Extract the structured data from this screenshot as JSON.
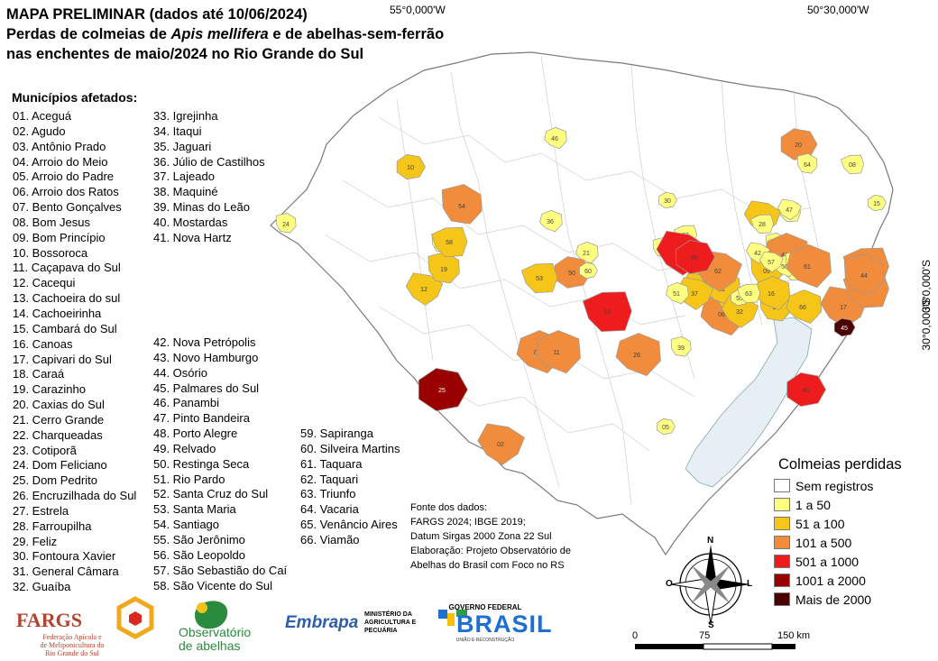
{
  "title": {
    "line1": "MAPA PRELIMINAR (dados até 10/06/2024)",
    "line2_a": "Perdas de colmeias de ",
    "line2_species": "Apis mellifera",
    "line2_b": " e de abelhas-sem-ferrão",
    "line3": "nas enchentes de maio/2024 no Rio Grande do Sul"
  },
  "coords": {
    "top_left": "55°0,000'W",
    "top_right": "50°30,000'W",
    "right_top": "30°0,000'S",
    "right_bottom": "30°0,000'S"
  },
  "municipalities_title": "Municípios afetados:",
  "municipalities": {
    "col1": [
      "01. Aceguá",
      "02. Agudo",
      "03. Antônio Prado",
      "04. Arroio do Meio",
      "05. Arroio do Padre",
      "06. Arroio dos Ratos",
      "07. Bento Gonçalves",
      "08. Bom Jesus",
      "09. Bom Princípio",
      "10. Bossoroca",
      "11. Caçapava do Sul",
      "12. Cacequi",
      "13. Cachoeira do sul",
      "14. Cachoeirinha",
      "15. Cambará do Sul",
      "16. Canoas",
      "17. Capivari do Sul",
      "18. Caraá",
      "19. Carazinho",
      "20. Caxias do Sul",
      "21. Cerro Grande",
      "22. Charqueadas",
      "23. Cotiporã",
      "24. Dom Feliciano",
      "25. Dom Pedrito",
      "26. Encruzilhada do Sul",
      "27. Estrela",
      "28. Farroupilha",
      "29. Feliz",
      "30. Fontoura Xavier",
      "31. General Câmara",
      "32. Guaíba"
    ],
    "col2a": [
      "33. Igrejinha",
      "34. Itaqui",
      "35. Jaguari",
      "36. Júlio de Castilhos",
      "37. Lajeado",
      "38. Maquiné",
      "39. Minas do Leão",
      "40. Mostardas",
      "41. Nova Hartz"
    ],
    "col2b": [
      "42. Nova Petrópolis",
      "43. Novo Hamburgo",
      "44. Osório",
      "45. Palmares do Sul",
      "46. Panambi",
      "47. Pinto Bandeira",
      "48. Porto Alegre",
      "49. Relvado",
      "50. Restinga Seca",
      "51. Rio Pardo",
      "52. Santa Cruz do Sul",
      "53. Santa Maria",
      "54. Santiago",
      "55. São Jerônimo",
      "56. São Leopoldo",
      "57. São Sebastião do Caí",
      "58. São Vicente do Sul"
    ],
    "col3": [
      "59. Sapiranga",
      "60. Silveira Martins",
      "61. Taquara",
      "62. Taquari",
      "63. Triunfo",
      "64. Vacaria",
      "65. Venâncio Aires",
      "66. Viamão"
    ]
  },
  "legend": {
    "title": "Colmeias perdidas",
    "items": [
      {
        "label": "Sem registros",
        "color": "#ffffff"
      },
      {
        "label": "1 a 50",
        "color": "#ffff80"
      },
      {
        "label": "51 a 100",
        "color": "#f5c518"
      },
      {
        "label": "101 a 500",
        "color": "#f08c3c"
      },
      {
        "label": "501 a 1000",
        "color": "#ee1c1c"
      },
      {
        "label": "1001 a 2000",
        "color": "#990000"
      },
      {
        "label": "Mais de 2000",
        "color": "#4a0000"
      }
    ]
  },
  "source": {
    "l1": "Fonte dos dados:",
    "l2": "FARGS 2024; IBGE 2019;",
    "l3": "Datum Sirgas 2000 Zona 22 Sul",
    "l4": "Elaboração: Projeto Observatório de",
    "l5": "Abelhas do Brasil com Foco no RS"
  },
  "compass": {
    "n": "N",
    "s": "S",
    "l": "L",
    "o": "O"
  },
  "scale": {
    "s0": "0",
    "s1": "75",
    "s2": "150 km"
  },
  "colors": {
    "lagoon": "#e6eef6",
    "border": "#bdbdbd"
  },
  "logos": {
    "fargs": "FARGS",
    "fargs_sub1": "Federação Apícola e",
    "fargs_sub2": "de Meliponicultura do",
    "fargs_sub3": "Rio Grande do Sul",
    "obs1": "Observatório",
    "obs2": "de abelhas",
    "embrapa": "Embrapa",
    "min1": "MINISTÉRIO DA",
    "min2": "AGRICULTURA E",
    "min3": "PECUÁRIA",
    "gov_top": "GOVERNO FEDERAL",
    "gov_word": "BRASIL",
    "gov_sub": "UNIÃO E RECONSTRUÇÃO"
  },
  "affected": [
    {
      "id": "01",
      "level": 3
    },
    {
      "id": "02",
      "level": 3
    },
    {
      "id": "03",
      "level": 1
    },
    {
      "id": "04",
      "level": 2
    },
    {
      "id": "05",
      "level": 1
    },
    {
      "id": "06",
      "level": 3
    },
    {
      "id": "07",
      "level": 2
    },
    {
      "id": "08",
      "level": 1
    },
    {
      "id": "09",
      "level": 2
    },
    {
      "id": "10",
      "level": 2
    },
    {
      "id": "11",
      "level": 3
    },
    {
      "id": "12",
      "level": 2
    },
    {
      "id": "13",
      "level": 4
    },
    {
      "id": "14",
      "level": 2
    },
    {
      "id": "15",
      "level": 1
    },
    {
      "id": "16",
      "level": 2
    },
    {
      "id": "17",
      "level": 3
    },
    {
      "id": "18",
      "level": 3
    },
    {
      "id": "19",
      "level": 2
    },
    {
      "id": "20",
      "level": 3
    },
    {
      "id": "21",
      "level": 1
    },
    {
      "id": "22",
      "level": 2
    },
    {
      "id": "23",
      "level": 1
    },
    {
      "id": "24",
      "level": 1
    },
    {
      "id": "25",
      "level": 5
    },
    {
      "id": "26",
      "level": 3
    },
    {
      "id": "27",
      "level": 2
    },
    {
      "id": "28",
      "level": 1
    },
    {
      "id": "29",
      "level": 1
    },
    {
      "id": "30",
      "level": 1
    },
    {
      "id": "31",
      "level": 2
    },
    {
      "id": "32",
      "level": 2
    },
    {
      "id": "33",
      "level": 1
    },
    {
      "id": "34",
      "level": 1
    },
    {
      "id": "35",
      "level": 1
    },
    {
      "id": "36",
      "level": 1
    },
    {
      "id": "37",
      "level": 2
    },
    {
      "id": "38",
      "level": 3
    },
    {
      "id": "39",
      "level": 1
    },
    {
      "id": "40",
      "level": 4
    },
    {
      "id": "41",
      "level": 3
    },
    {
      "id": "42",
      "level": 1
    },
    {
      "id": "43",
      "level": 1
    },
    {
      "id": "44",
      "level": 3
    },
    {
      "id": "45",
      "level": 6
    },
    {
      "id": "46",
      "level": 1
    },
    {
      "id": "47",
      "level": 1
    },
    {
      "id": "48",
      "level": 1
    },
    {
      "id": "49",
      "level": 1
    },
    {
      "id": "50",
      "level": 3
    },
    {
      "id": "51",
      "level": 1
    },
    {
      "id": "52",
      "level": 4
    },
    {
      "id": "53",
      "level": 2
    },
    {
      "id": "54",
      "level": 3
    },
    {
      "id": "55",
      "level": 1
    },
    {
      "id": "56",
      "level": 1
    },
    {
      "id": "57",
      "level": 1
    },
    {
      "id": "58",
      "level": 2
    },
    {
      "id": "59",
      "level": 1
    },
    {
      "id": "60",
      "level": 1
    },
    {
      "id": "61",
      "level": 3
    },
    {
      "id": "62",
      "level": 3
    },
    {
      "id": "63",
      "level": 1
    },
    {
      "id": "64",
      "level": 1
    },
    {
      "id": "65",
      "level": 4
    },
    {
      "id": "66",
      "level": 2
    }
  ]
}
